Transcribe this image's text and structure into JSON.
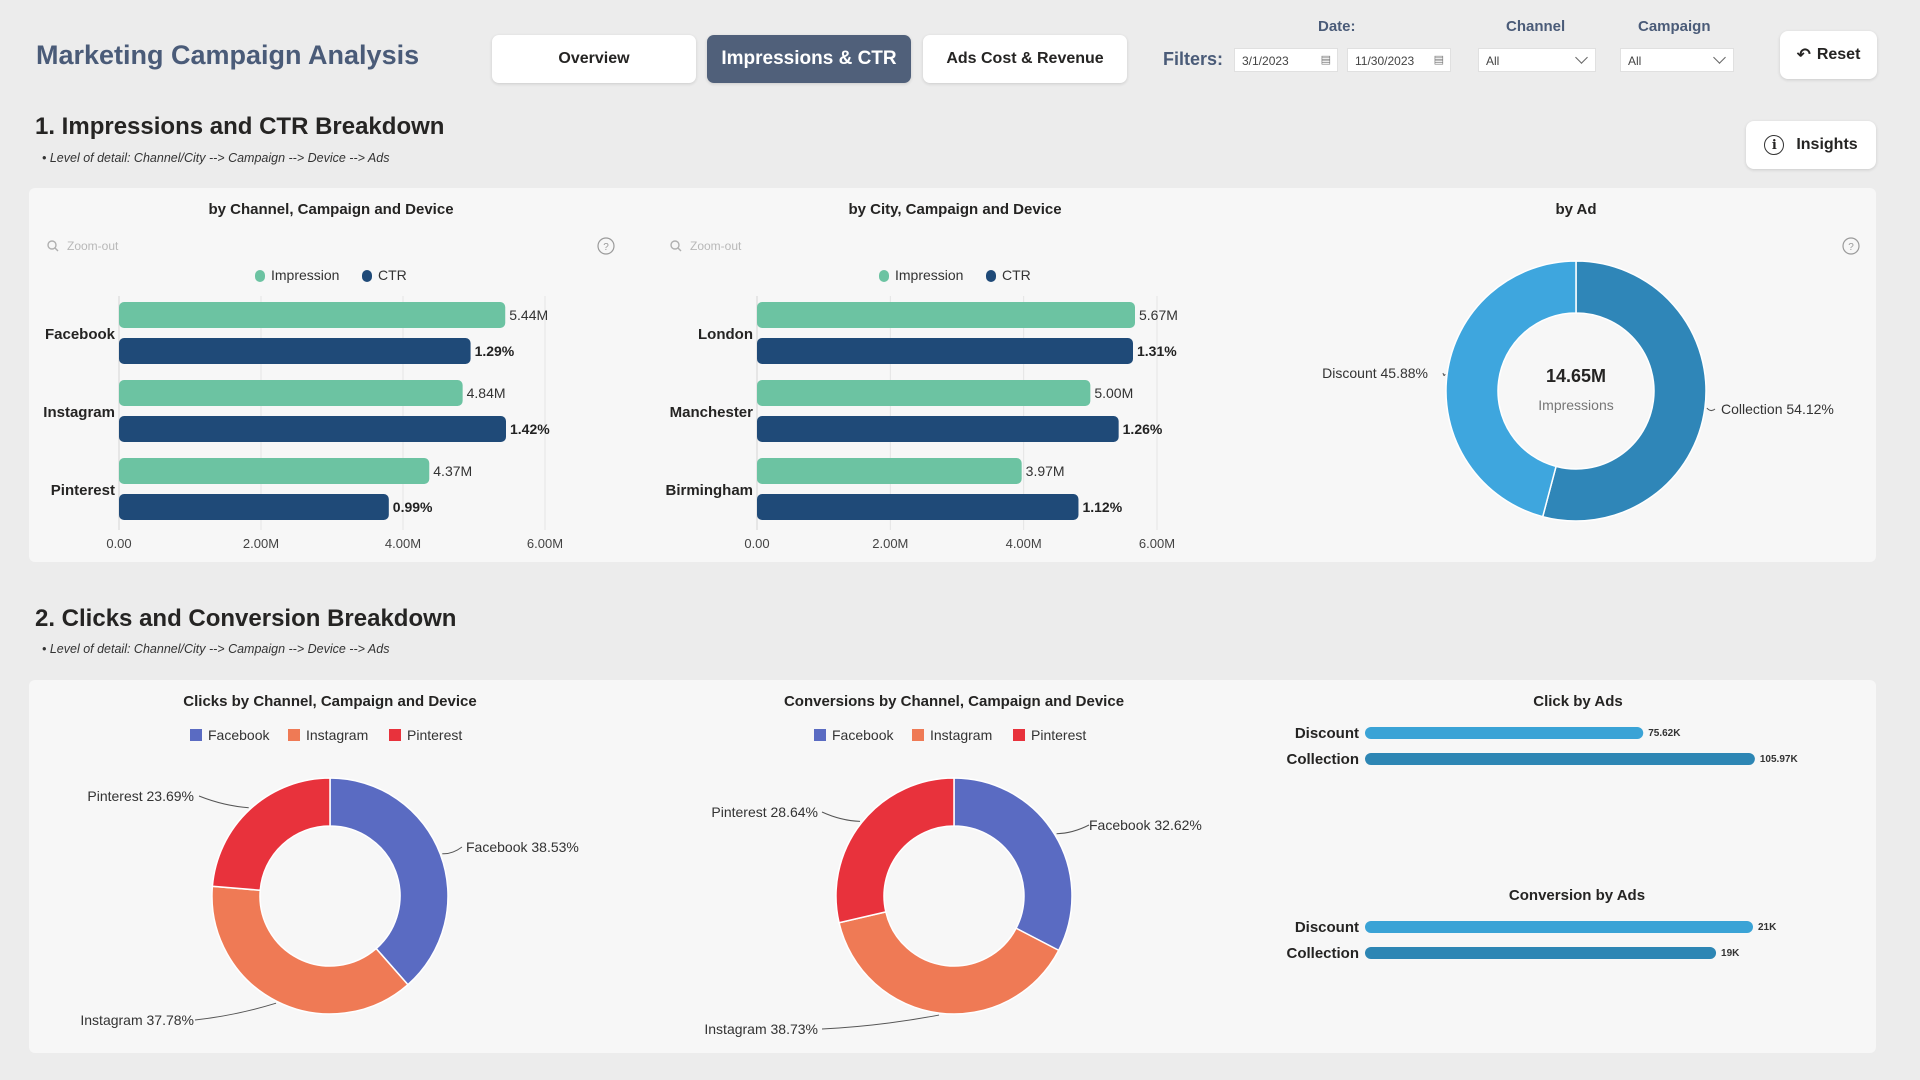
{
  "app": {
    "title": "Marketing Campaign Analysis"
  },
  "nav": {
    "tabs": [
      {
        "label": "Overview"
      },
      {
        "label": "Impressions & CTR"
      },
      {
        "label": "Ads Cost & Revenue"
      }
    ]
  },
  "filters": {
    "label": "Filters:",
    "date_label": "Date:",
    "date_start": "3/1/2023",
    "date_end": "11/30/2023",
    "channel_label": "Channel",
    "channel_value": "All",
    "campaign_label": "Campaign",
    "campaign_value": "All"
  },
  "reset": {
    "label": "Reset"
  },
  "section1": {
    "title": "1. Impressions and CTR Breakdown",
    "subtitle": "• Level of detail: Channel/City --> Campaign --> Device --> Ads",
    "insights_label": "Insights"
  },
  "section2": {
    "title": "2. Clicks and Conversion Breakdown",
    "subtitle": "• Level of detail: Channel/City --> Campaign --> Device --> Ads"
  },
  "zoom_label": "Zoom-out",
  "colors": {
    "impression": "#6cc3a2",
    "ctr": "#1f4a78",
    "facebook": "#5a6bc2",
    "instagram": "#ef7a55",
    "pinterest": "#e8323c",
    "ad_blue": "#3b9fd4"
  },
  "chart_data": [
    {
      "id": "channel",
      "type": "bar",
      "orientation": "horizontal",
      "title": "by Channel, Campaign and Device",
      "categories": [
        "Facebook",
        "Instagram",
        "Pinterest"
      ],
      "series": [
        {
          "name": "Impression",
          "values": [
            5.44,
            4.84,
            4.37
          ],
          "labels": [
            "5.44M",
            "4.84M",
            "4.37M"
          ]
        },
        {
          "name": "CTR",
          "values": [
            1.29,
            1.42,
            0.99
          ],
          "labels": [
            "1.29%",
            "1.42%",
            "0.99%"
          ]
        }
      ],
      "ticks": [
        "0.00",
        "2.00M",
        "4.00M",
        "6.00M"
      ],
      "xlim": [
        0,
        6
      ]
    },
    {
      "id": "city",
      "type": "bar",
      "orientation": "horizontal",
      "title": "by City, Campaign and Device",
      "categories": [
        "London",
        "Manchester",
        "Birmingham"
      ],
      "series": [
        {
          "name": "Impression",
          "values": [
            5.67,
            5.0,
            3.97
          ],
          "labels": [
            "5.67M",
            "5.00M",
            "3.97M"
          ]
        },
        {
          "name": "CTR",
          "values": [
            1.31,
            1.26,
            1.12
          ],
          "labels": [
            "1.31%",
            "1.26%",
            "1.12%"
          ]
        }
      ],
      "ticks": [
        "0.00",
        "2.00M",
        "4.00M",
        "6.00M"
      ],
      "xlim": [
        0,
        6
      ]
    },
    {
      "id": "ad",
      "type": "pie",
      "title": "by Ad",
      "slices": [
        {
          "name": "Collection",
          "value": 54.12,
          "label": "Collection 54.12%"
        },
        {
          "name": "Discount",
          "value": 45.88,
          "label": "Discount 45.88%"
        }
      ],
      "center_value": "14.65M",
      "center_label": "Impressions"
    },
    {
      "id": "clicks",
      "type": "pie",
      "title": "Clicks by Channel, Campaign and Device",
      "legend": [
        "Facebook",
        "Instagram",
        "Pinterest"
      ],
      "slices": [
        {
          "name": "Facebook",
          "value": 38.53,
          "label": "Facebook 38.53%"
        },
        {
          "name": "Instagram",
          "value": 37.78,
          "label": "Instagram 37.78%"
        },
        {
          "name": "Pinterest",
          "value": 23.69,
          "label": "Pinterest 23.69%"
        }
      ]
    },
    {
      "id": "conversions",
      "type": "pie",
      "title": "Conversions by Channel, Campaign and Device",
      "legend": [
        "Facebook",
        "Instagram",
        "Pinterest"
      ],
      "slices": [
        {
          "name": "Facebook",
          "value": 32.62,
          "label": "Facebook 32.62%"
        },
        {
          "name": "Instagram",
          "value": 38.73,
          "label": "Instagram 38.73%"
        },
        {
          "name": "Pinterest",
          "value": 28.64,
          "label": "Pinterest 28.64%"
        }
      ]
    },
    {
      "id": "clickads",
      "type": "bar",
      "orientation": "horizontal",
      "title": "Click by Ads",
      "categories": [
        "Discount",
        "Collection"
      ],
      "values": [
        75.62,
        105.97
      ],
      "labels": [
        "75.62K",
        "105.97K"
      ],
      "xlim": [
        0,
        106
      ]
    },
    {
      "id": "convads",
      "type": "bar",
      "orientation": "horizontal",
      "title": "Conversion by Ads",
      "categories": [
        "Discount",
        "Collection"
      ],
      "values": [
        21,
        19
      ],
      "labels": [
        "21K",
        "19K"
      ],
      "xlim": [
        0,
        21
      ]
    }
  ]
}
